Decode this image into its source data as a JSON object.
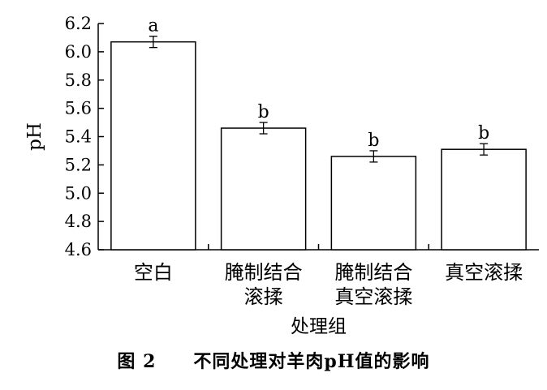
{
  "chart_data": {
    "type": "bar",
    "categories": [
      [
        "空白"
      ],
      [
        "腌制结合",
        "滚揉"
      ],
      [
        "腌制结合",
        "真空滚揉"
      ],
      [
        "真空滚揉"
      ]
    ],
    "values": [
      6.07,
      5.46,
      5.26,
      5.31
    ],
    "errors": [
      0.04,
      0.04,
      0.04,
      0.04
    ],
    "significance": [
      "a",
      "b",
      "b",
      "b"
    ],
    "xlabel": "处理组",
    "ylabel": "pH",
    "ylim": [
      4.6,
      6.2
    ],
    "yticks": [
      "4.6",
      "4.8",
      "5.0",
      "5.2",
      "5.4",
      "5.6",
      "5.8",
      "6.0",
      "6.2"
    ],
    "grid": false,
    "bar_fill": "#ffffff",
    "bar_stroke": "#000000"
  },
  "caption": "图 2　　不同处理对羊肉pH值的影响"
}
